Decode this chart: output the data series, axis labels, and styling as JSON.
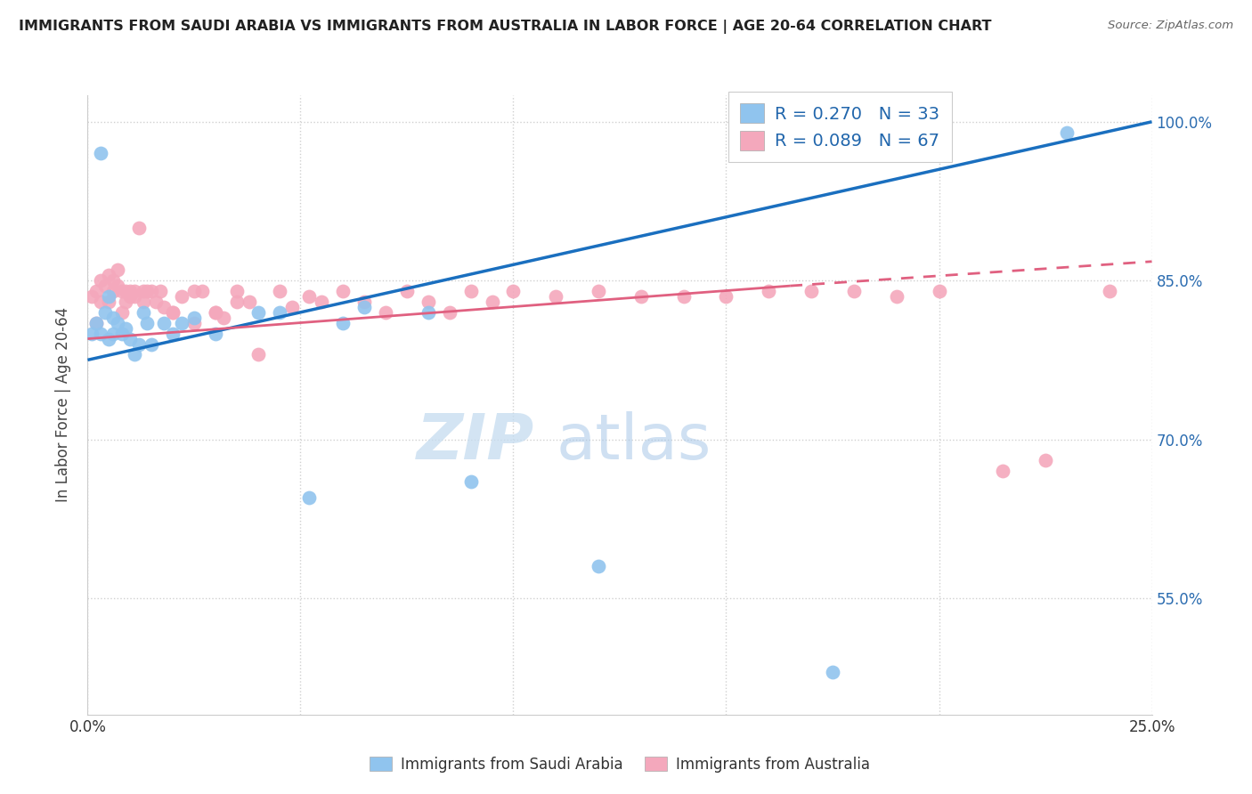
{
  "title": "IMMIGRANTS FROM SAUDI ARABIA VS IMMIGRANTS FROM AUSTRALIA IN LABOR FORCE | AGE 20-64 CORRELATION CHART",
  "source": "Source: ZipAtlas.com",
  "ylabel": "In Labor Force | Age 20-64",
  "xlim": [
    0.0,
    0.25
  ],
  "ylim": [
    0.44,
    1.025
  ],
  "xticks": [
    0.0,
    0.05,
    0.1,
    0.15,
    0.2,
    0.25
  ],
  "xticklabels": [
    "0.0%",
    "",
    "",
    "",
    "",
    "25.0%"
  ],
  "yticks_right": [
    0.55,
    0.7,
    0.85,
    1.0
  ],
  "ytick_labels_right": [
    "55.0%",
    "70.0%",
    "85.0%",
    "100.0%"
  ],
  "saudi_color": "#90C4EE",
  "australia_color": "#F4A8BC",
  "trend_saudi_color": "#1A6FBF",
  "trend_australia_color": "#E06080",
  "legend_label_saudi": "Immigrants from Saudi Arabia",
  "legend_label_australia": "Immigrants from Australia",
  "watermark_zip": "ZIP",
  "watermark_atlas": "atlas",
  "background_color": "#ffffff",
  "grid_color": "#d0d0d0",
  "saudi_trend_x0": 0.0,
  "saudi_trend_y0": 0.775,
  "saudi_trend_x1": 0.25,
  "saudi_trend_y1": 1.0,
  "aus_trend_x0": 0.0,
  "aus_trend_y0": 0.795,
  "aus_trend_x1": 0.165,
  "aus_trend_y1": 0.845,
  "aus_trend_dash_x0": 0.165,
  "aus_trend_dash_y0": 0.845,
  "aus_trend_dash_x1": 0.25,
  "aus_trend_dash_y1": 0.868,
  "saudi_x": [
    0.001,
    0.002,
    0.003,
    0.003,
    0.004,
    0.005,
    0.005,
    0.006,
    0.006,
    0.007,
    0.008,
    0.009,
    0.01,
    0.011,
    0.012,
    0.013,
    0.014,
    0.015,
    0.018,
    0.02,
    0.022,
    0.025,
    0.03,
    0.04,
    0.045,
    0.052,
    0.06,
    0.065,
    0.08,
    0.09,
    0.12,
    0.175,
    0.23
  ],
  "saudi_y": [
    0.8,
    0.81,
    0.8,
    0.97,
    0.82,
    0.795,
    0.835,
    0.8,
    0.815,
    0.81,
    0.8,
    0.805,
    0.795,
    0.78,
    0.79,
    0.82,
    0.81,
    0.79,
    0.81,
    0.8,
    0.81,
    0.815,
    0.8,
    0.82,
    0.82,
    0.645,
    0.81,
    0.825,
    0.82,
    0.66,
    0.58,
    0.48,
    0.99
  ],
  "australia_x": [
    0.001,
    0.002,
    0.002,
    0.003,
    0.003,
    0.004,
    0.005,
    0.005,
    0.006,
    0.006,
    0.007,
    0.007,
    0.008,
    0.008,
    0.009,
    0.009,
    0.01,
    0.01,
    0.011,
    0.011,
    0.012,
    0.013,
    0.013,
    0.014,
    0.015,
    0.016,
    0.017,
    0.018,
    0.02,
    0.022,
    0.025,
    0.027,
    0.03,
    0.032,
    0.035,
    0.038,
    0.04,
    0.045,
    0.048,
    0.052,
    0.055,
    0.06,
    0.065,
    0.07,
    0.075,
    0.08,
    0.085,
    0.09,
    0.095,
    0.1,
    0.11,
    0.12,
    0.13,
    0.14,
    0.15,
    0.16,
    0.17,
    0.18,
    0.19,
    0.2,
    0.215,
    0.225,
    0.24,
    0.02,
    0.025,
    0.03,
    0.035
  ],
  "australia_y": [
    0.835,
    0.84,
    0.81,
    0.85,
    0.83,
    0.845,
    0.855,
    0.83,
    0.84,
    0.85,
    0.845,
    0.86,
    0.84,
    0.82,
    0.84,
    0.83,
    0.835,
    0.84,
    0.835,
    0.84,
    0.9,
    0.84,
    0.83,
    0.84,
    0.84,
    0.83,
    0.84,
    0.825,
    0.82,
    0.835,
    0.84,
    0.84,
    0.82,
    0.815,
    0.83,
    0.83,
    0.78,
    0.84,
    0.825,
    0.835,
    0.83,
    0.84,
    0.83,
    0.82,
    0.84,
    0.83,
    0.82,
    0.84,
    0.83,
    0.84,
    0.835,
    0.84,
    0.835,
    0.835,
    0.835,
    0.84,
    0.84,
    0.84,
    0.835,
    0.84,
    0.67,
    0.68,
    0.84,
    0.82,
    0.81,
    0.82,
    0.84
  ]
}
